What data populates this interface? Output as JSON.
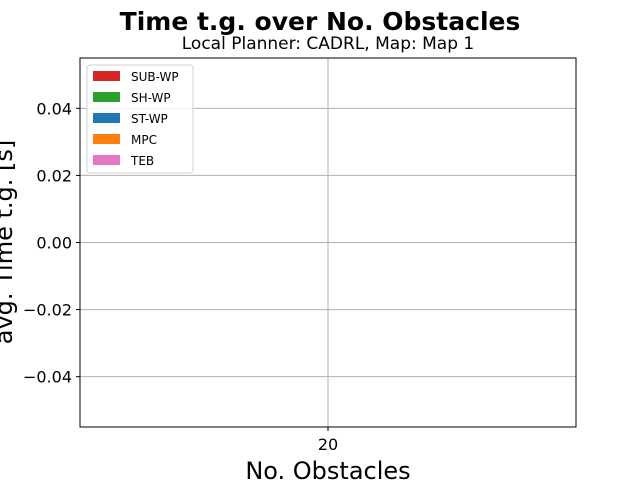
{
  "chart_data": {
    "type": "bar",
    "title": "Time t.g. over No. Obstacles",
    "subtitle": "Local Planner: CADRL, Map: Map 1",
    "xlabel": "No. Obstacles",
    "ylabel": "avg. Time t.g. [s]",
    "categories": [
      "20"
    ],
    "ylim": [
      -0.055,
      0.055
    ],
    "yticks": [
      -0.04,
      -0.02,
      0.0,
      0.02,
      0.04
    ],
    "ytick_labels": [
      "−0.04",
      "−0.02",
      "0.00",
      "0.02",
      "0.04"
    ],
    "grid": true,
    "legend_position": "top-left",
    "series": [
      {
        "name": "SUB-WP",
        "color": "#d62728",
        "values": [
          null
        ]
      },
      {
        "name": "SH-WP",
        "color": "#2ca02c",
        "values": [
          null
        ]
      },
      {
        "name": "ST-WP",
        "color": "#1f77b4",
        "values": [
          null
        ]
      },
      {
        "name": "MPC",
        "color": "#ff7f0e",
        "values": [
          null
        ]
      },
      {
        "name": "TEB",
        "color": "#e377c2",
        "values": [
          null
        ]
      }
    ]
  }
}
